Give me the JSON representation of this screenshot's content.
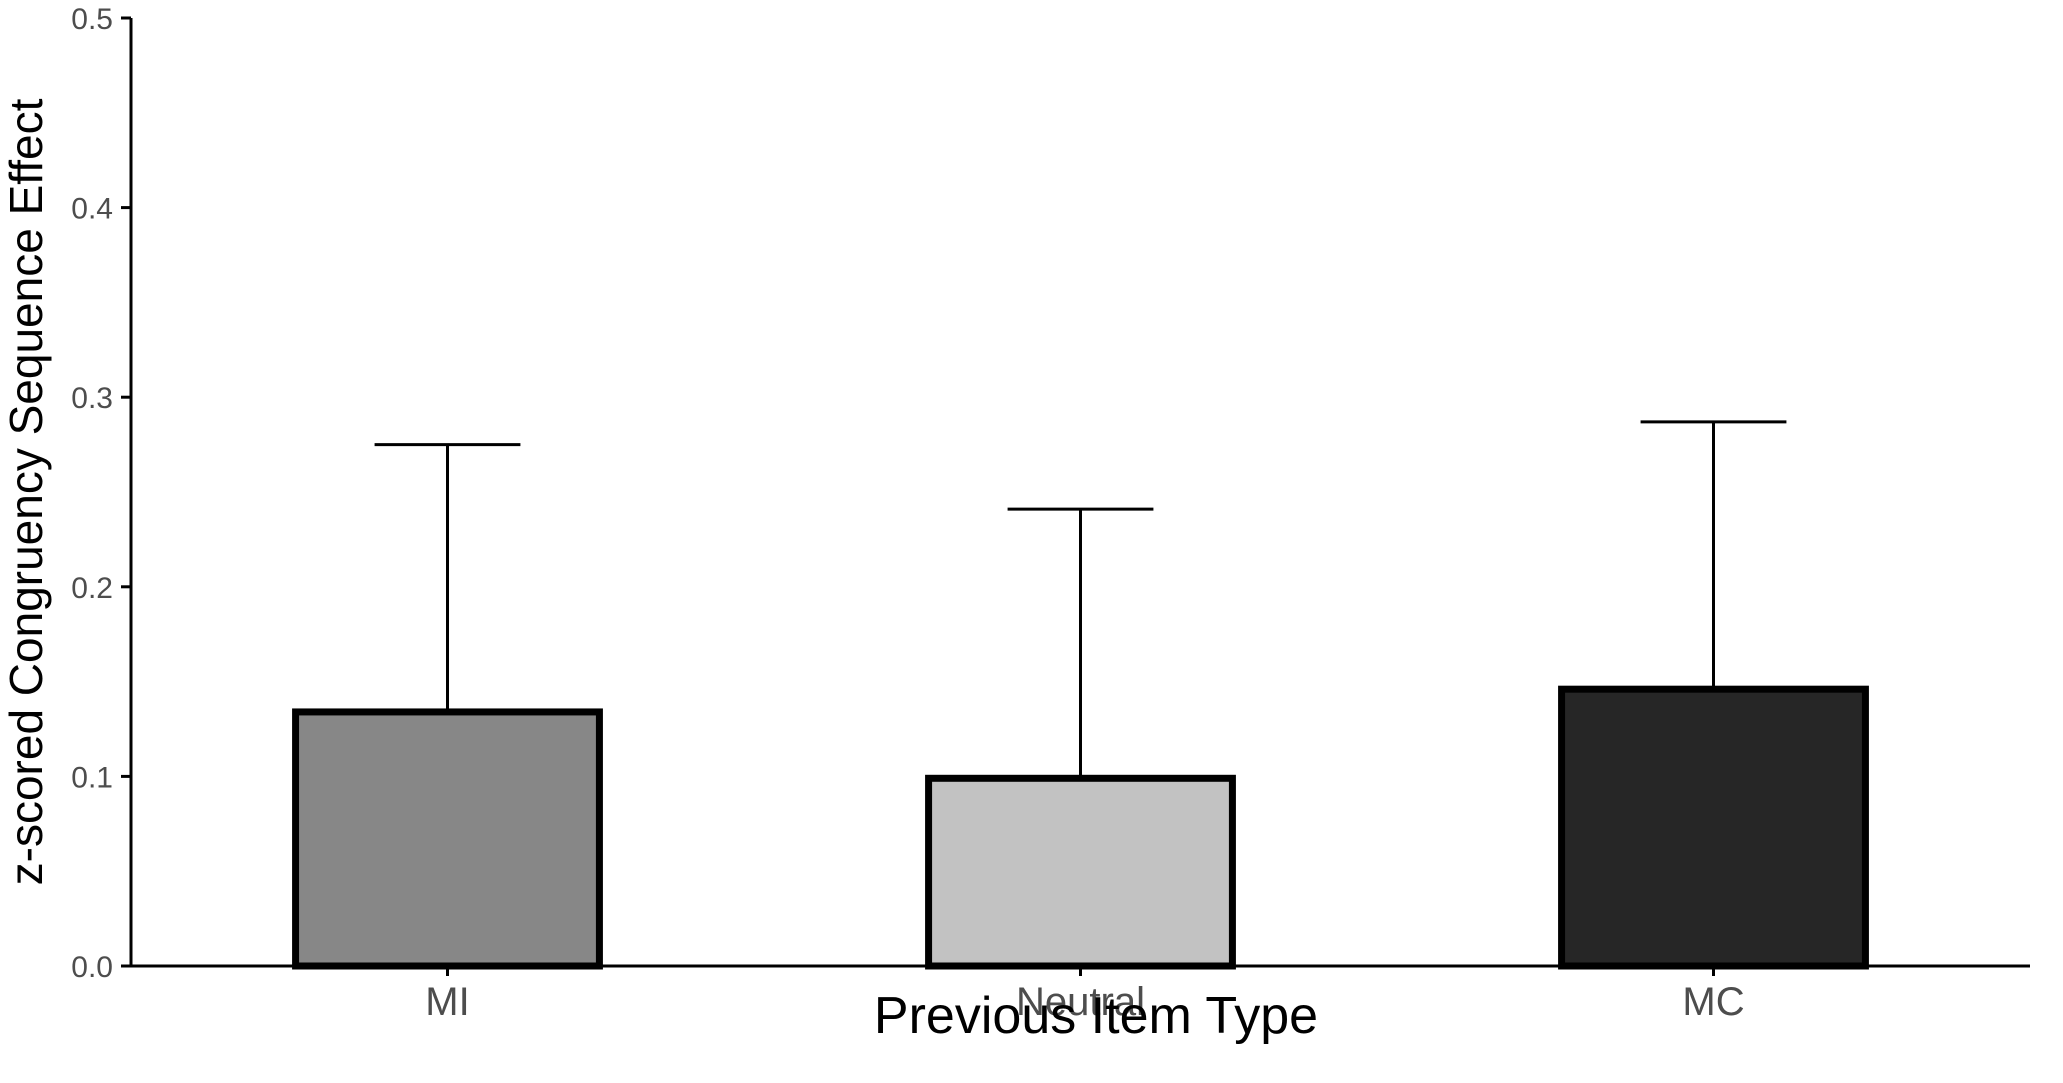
{
  "chart_data": {
    "type": "bar",
    "categories": [
      "MI",
      "Neutral",
      "MC"
    ],
    "values": [
      0.134,
      0.099,
      0.146
    ],
    "error_upper": [
      0.275,
      0.241,
      0.287
    ],
    "colors": [
      "#878787",
      "#c2c2c2",
      "#262626"
    ],
    "xlabel": "Previous Item Type",
    "ylabel": "z-scored Congruency Sequence Effect",
    "ylim": [
      0,
      0.5
    ],
    "yticks": [
      "0.0",
      "0.1",
      "0.2",
      "0.3",
      "0.4",
      "0.5"
    ],
    "grid": false,
    "legend": "none"
  }
}
